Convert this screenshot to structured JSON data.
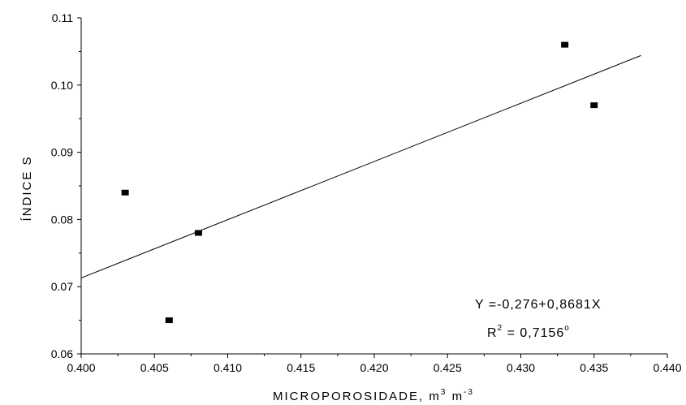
{
  "chart_data": {
    "type": "scatter",
    "xlabel": "MICROPOROSIDADE, m",
    "xlabel_unit_exp1": "3",
    "xlabel_unit_mid": " m",
    "xlabel_unit_exp2": "-3",
    "ylabel": "ÍNDICE S",
    "xlim": [
      0.4,
      0.44
    ],
    "ylim": [
      0.06,
      0.11
    ],
    "x_ticks": [
      "0.400",
      "0.405",
      "0.410",
      "0.415",
      "0.420",
      "0.425",
      "0.430",
      "0.435",
      "0.440"
    ],
    "x_tick_values": [
      0.4,
      0.405,
      0.41,
      0.415,
      0.42,
      0.425,
      0.43,
      0.435,
      0.44
    ],
    "y_ticks": [
      "0.06",
      "0.07",
      "0.08",
      "0.09",
      "0.10",
      "0.11"
    ],
    "y_tick_values": [
      0.06,
      0.07,
      0.08,
      0.09,
      0.1,
      0.11
    ],
    "points": [
      {
        "x": 0.403,
        "y": 0.084
      },
      {
        "x": 0.406,
        "y": 0.065
      },
      {
        "x": 0.408,
        "y": 0.078
      },
      {
        "x": 0.433,
        "y": 0.106
      },
      {
        "x": 0.435,
        "y": 0.097
      }
    ],
    "fit_line": {
      "x_start": 0.4,
      "y_start": 0.0713,
      "x_end": 0.4382,
      "y_end": 0.1044
    },
    "grid": false,
    "annotation": {
      "equation": "Y =-0,276+0,8681X",
      "r2_prefix": "R",
      "r2_exp": "2",
      "r2_value": " = 0,7156",
      "r2_suffix": "o"
    }
  }
}
